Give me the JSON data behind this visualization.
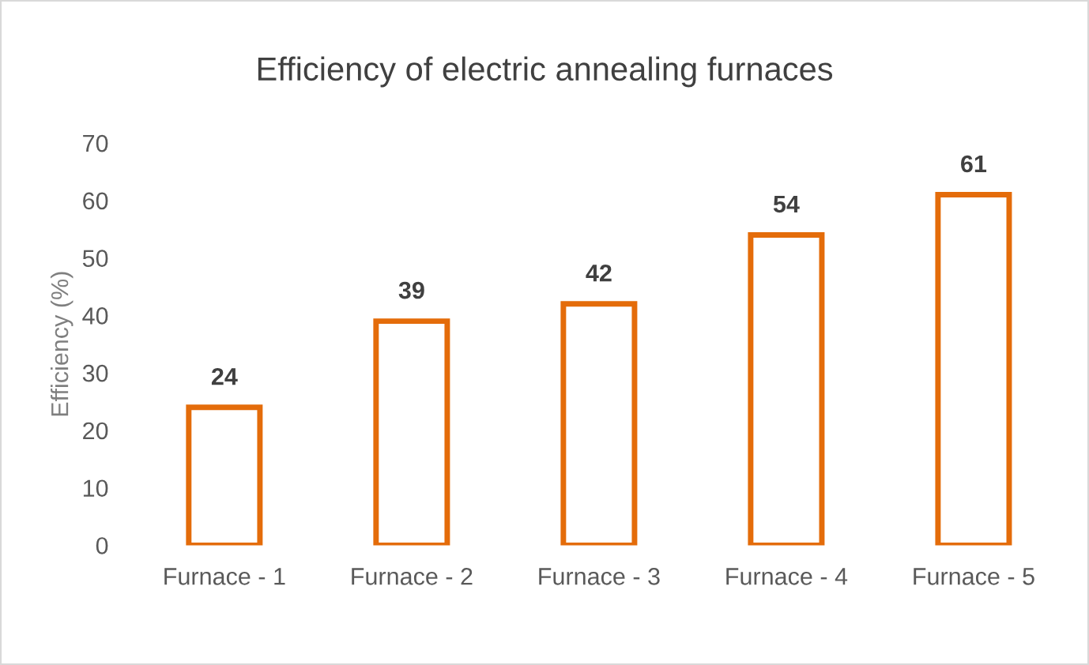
{
  "chart_data": {
    "type": "bar",
    "title": "Efficiency of electric annealing furnaces",
    "ylabel": "Efficiency (%)",
    "categories": [
      "Furnace - 1",
      "Furnace - 2",
      "Furnace - 3",
      "Furnace - 4",
      "Furnace - 5"
    ],
    "values": [
      24,
      39,
      42,
      54,
      61
    ],
    "color": "#e46c0a",
    "ylim": [
      0,
      70
    ],
    "yticks": [
      0,
      10,
      20,
      30,
      40,
      50,
      60,
      70
    ],
    "grid": false,
    "data_labels": true,
    "legend": false
  }
}
